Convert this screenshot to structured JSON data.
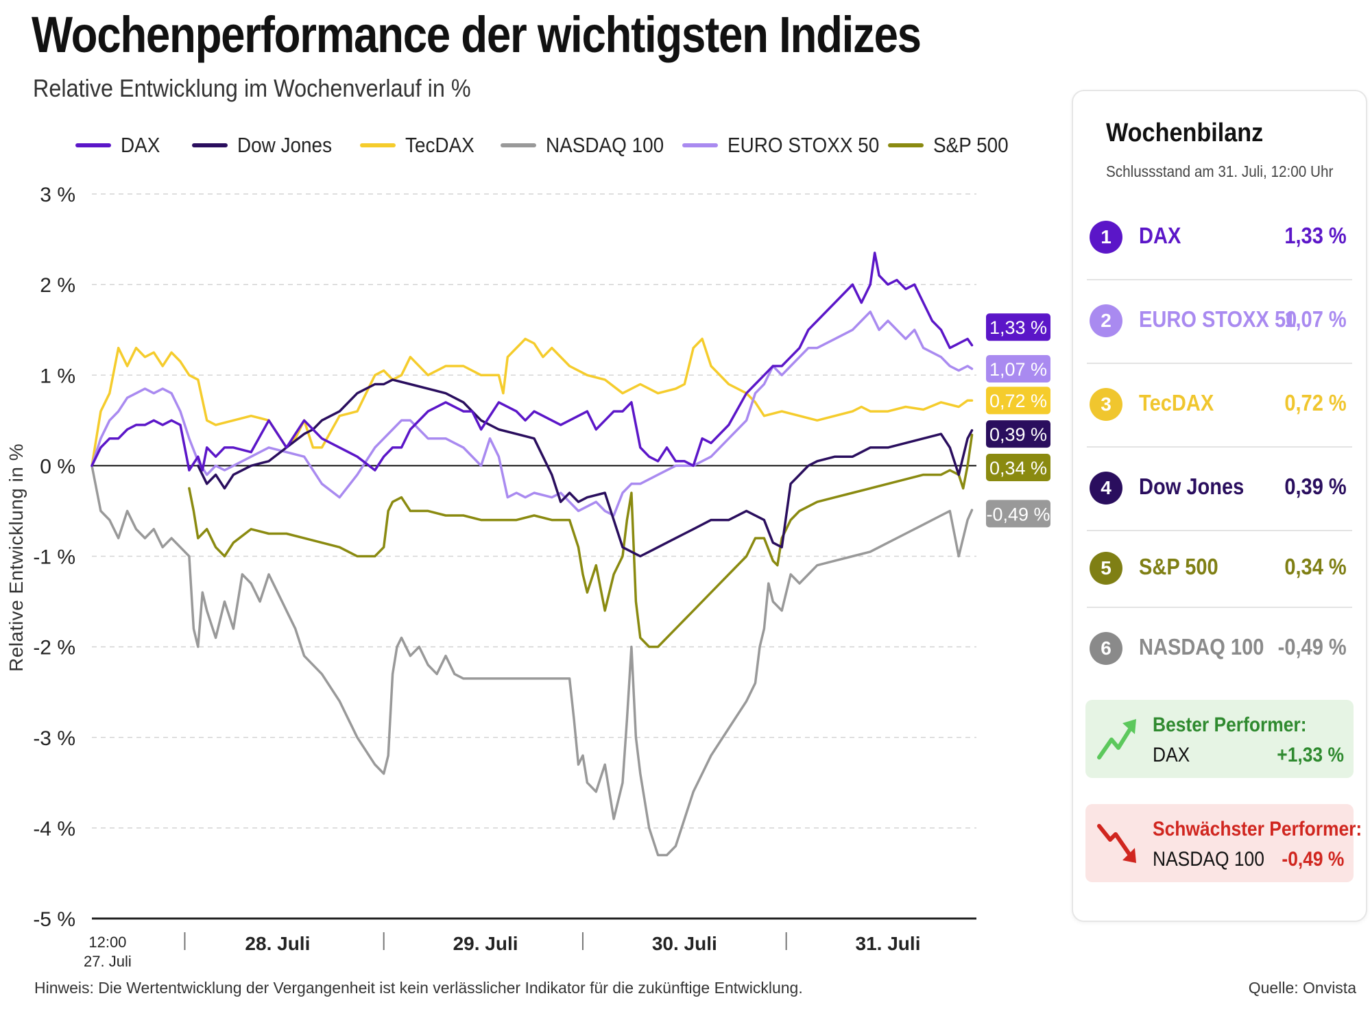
{
  "title": "Wochenperformance der wichtigsten Indizes",
  "subtitle": "Relative Entwicklung im Wochenverlauf in %",
  "footnote": "Hinweis: Die Wertentwicklung der Vergangenheit ist kein verlässlicher Indikator für die zukünftige Entwicklung.",
  "source": "Quelle: Onvista",
  "colors": {
    "DAX": "#5b16c8",
    "Dow Jones": "#2a0e5e",
    "TecDAX": "#f5cc2c",
    "NASDAQ 100": "#999999",
    "EURO STOXX 50": "#a98af0",
    "S&P 500": "#8a8a10"
  },
  "legend": [
    {
      "name": "DAX",
      "color": "#5b16c8"
    },
    {
      "name": "Dow Jones",
      "color": "#2a0e5e"
    },
    {
      "name": "TecDAX",
      "color": "#f5cc2c"
    },
    {
      "name": "NASDAQ 100",
      "color": "#999999"
    },
    {
      "name": "EURO STOXX 50",
      "color": "#a98af0"
    },
    {
      "name": "S&P 500",
      "color": "#8a8a10"
    }
  ],
  "chart_data": {
    "type": "line",
    "title": "Wochenperformance der wichtigsten Indizes",
    "subtitle": "Relative Entwicklung im Wochenverlauf in %",
    "ylabel": "Relative Entwicklung in %",
    "xlabel": "",
    "ylim": [
      -5,
      3
    ],
    "y_ticks": [
      3,
      2,
      1,
      0,
      -1,
      -2,
      -3,
      -4,
      -5
    ],
    "y_tick_labels": [
      "3 %",
      "2 %",
      "1 %",
      "0 %",
      "-1 %",
      "-2 %",
      "-3 %",
      "-4 %",
      "-5 %"
    ],
    "x_range": [
      0,
      100
    ],
    "x_tick_labels": [
      {
        "x": 1,
        "label": "12:00",
        "label2": "27. Juli"
      },
      {
        "x": 21,
        "label": "28. Juli"
      },
      {
        "x": 44.5,
        "label": "29. Juli"
      },
      {
        "x": 67,
        "label": "30. Juli"
      },
      {
        "x": 90,
        "label": "31. Juli"
      }
    ],
    "x_separators": [
      10.5,
      33,
      55.5,
      78.5
    ],
    "grid": "horizontal dashed",
    "legend_position": "top",
    "series": [
      {
        "name": "DAX",
        "end_label": "1,33 %",
        "x": [
          0,
          1,
          2,
          3,
          4,
          5,
          6,
          7,
          8,
          9,
          10,
          11,
          12,
          12.5,
          13,
          14,
          15,
          16,
          18,
          20,
          22,
          24,
          25,
          26,
          28,
          30,
          32,
          33,
          34,
          35,
          36,
          38,
          40,
          42,
          43,
          44,
          46,
          48,
          49,
          50,
          52,
          53,
          54,
          55,
          56,
          57,
          58,
          59,
          60,
          61,
          62,
          63,
          64,
          65,
          66,
          67,
          68,
          69,
          70,
          72,
          74,
          75,
          76,
          77,
          78,
          79,
          80,
          81,
          82,
          84,
          86,
          87,
          88,
          88.5,
          89,
          90,
          91,
          92,
          93,
          94,
          95,
          96,
          97,
          98,
          99,
          99.5
        ],
        "values": [
          0,
          0.2,
          0.3,
          0.3,
          0.4,
          0.45,
          0.45,
          0.5,
          0.45,
          0.5,
          0.45,
          -0.05,
          0.1,
          -0.05,
          0.2,
          0.1,
          0.2,
          0.2,
          0.15,
          0.5,
          0.2,
          0.5,
          0.4,
          0.3,
          0.2,
          0.1,
          -0.05,
          0.1,
          0.2,
          0.2,
          0.4,
          0.6,
          0.7,
          0.6,
          0.6,
          0.4,
          0.7,
          0.6,
          0.5,
          0.6,
          0.5,
          0.45,
          0.5,
          0.55,
          0.6,
          0.4,
          0.5,
          0.6,
          0.6,
          0.7,
          0.2,
          0.1,
          0.05,
          0.2,
          0.05,
          0.05,
          0.0,
          0.3,
          0.25,
          0.45,
          0.8,
          0.9,
          1.0,
          1.1,
          1.1,
          1.2,
          1.3,
          1.5,
          1.6,
          1.8,
          2.0,
          1.8,
          2.0,
          2.35,
          2.1,
          2.0,
          2.05,
          1.95,
          2.0,
          1.8,
          1.6,
          1.5,
          1.3,
          1.35,
          1.4,
          1.33
        ]
      },
      {
        "name": "Dow Jones",
        "end_label": "0,39 %",
        "x": [
          12,
          13,
          14,
          15,
          16,
          18,
          20,
          22,
          24,
          25,
          26,
          28,
          30,
          32,
          33,
          34,
          36,
          38,
          40,
          42,
          44,
          46,
          48,
          50,
          52,
          53,
          54,
          55,
          56,
          58,
          60,
          61,
          62,
          63,
          64,
          65,
          66,
          67,
          68,
          70,
          72,
          74,
          76,
          77,
          78,
          79,
          80,
          81,
          82,
          84,
          86,
          88,
          90,
          92,
          94,
          96,
          97,
          98,
          99,
          99.5
        ],
        "values": [
          0.0,
          -0.2,
          -0.1,
          -0.25,
          -0.1,
          0.0,
          0.05,
          0.2,
          0.35,
          0.4,
          0.5,
          0.6,
          0.8,
          0.9,
          0.9,
          0.95,
          0.9,
          0.85,
          0.8,
          0.7,
          0.5,
          0.4,
          0.35,
          0.3,
          -0.1,
          -0.4,
          -0.3,
          -0.4,
          -0.35,
          -0.3,
          -0.9,
          -0.95,
          -1.0,
          -0.95,
          -0.9,
          -0.85,
          -0.8,
          -0.75,
          -0.7,
          -0.6,
          -0.6,
          -0.5,
          -0.6,
          -0.85,
          -0.9,
          -0.2,
          -0.1,
          0.0,
          0.05,
          0.1,
          0.1,
          0.2,
          0.2,
          0.25,
          0.3,
          0.35,
          0.2,
          -0.1,
          0.3,
          0.39
        ]
      },
      {
        "name": "TecDAX",
        "end_label": "0,72 %",
        "x": [
          0,
          1,
          2,
          3,
          4,
          5,
          6,
          7,
          8,
          9,
          10,
          11,
          12,
          13,
          14,
          16,
          18,
          20,
          22,
          23,
          24,
          25,
          26,
          28,
          30,
          32,
          33,
          34,
          35,
          36,
          38,
          40,
          42,
          44,
          46,
          46.5,
          47,
          48,
          49,
          50,
          51,
          52,
          54,
          56,
          58,
          60,
          62,
          64,
          66,
          67,
          68,
          69,
          70,
          72,
          74,
          75,
          76,
          78,
          80,
          82,
          84,
          86,
          87,
          88,
          90,
          92,
          94,
          96,
          98,
          99,
          99.5
        ],
        "values": [
          0,
          0.6,
          0.8,
          1.3,
          1.1,
          1.3,
          1.2,
          1.25,
          1.1,
          1.25,
          1.15,
          1.0,
          0.95,
          0.5,
          0.45,
          0.5,
          0.55,
          0.5,
          0.2,
          0.3,
          0.5,
          0.2,
          0.2,
          0.55,
          0.6,
          1.0,
          1.05,
          0.95,
          1.0,
          1.2,
          1.0,
          1.1,
          1.1,
          1.0,
          1.0,
          0.8,
          1.2,
          1.3,
          1.4,
          1.35,
          1.2,
          1.3,
          1.1,
          1.0,
          0.95,
          0.8,
          0.9,
          0.8,
          0.85,
          0.9,
          1.3,
          1.4,
          1.1,
          0.9,
          0.8,
          0.7,
          0.55,
          0.6,
          0.55,
          0.5,
          0.55,
          0.6,
          0.65,
          0.6,
          0.6,
          0.65,
          0.62,
          0.7,
          0.65,
          0.72,
          0.72
        ]
      },
      {
        "name": "NASDAQ 100",
        "end_label": "-0,49 %",
        "x": [
          0,
          1,
          2,
          3,
          4,
          5,
          6,
          7,
          8,
          9,
          10,
          11,
          11.5,
          12,
          12.5,
          13,
          14,
          15,
          16,
          17,
          18,
          19,
          20,
          21,
          22,
          23,
          24,
          26,
          28,
          30,
          32,
          33,
          33.5,
          34,
          34.5,
          35,
          36,
          37,
          38,
          39,
          40,
          41,
          42,
          44,
          46,
          48,
          50,
          52,
          54,
          54.5,
          55,
          55.5,
          56,
          57,
          58,
          59,
          60,
          60.5,
          61,
          61.5,
          62,
          63,
          64,
          65,
          66,
          67,
          68,
          70,
          72,
          74,
          75,
          75.5,
          76,
          76.5,
          77,
          78,
          79,
          80,
          81,
          82,
          84,
          86,
          88,
          90,
          92,
          94,
          96,
          97,
          97.5,
          98,
          99,
          99.5
        ],
        "values": [
          0,
          -0.5,
          -0.6,
          -0.8,
          -0.5,
          -0.7,
          -0.8,
          -0.7,
          -0.9,
          -0.8,
          -0.9,
          -1.0,
          -1.8,
          -2.0,
          -1.4,
          -1.6,
          -1.9,
          -1.5,
          -1.8,
          -1.2,
          -1.3,
          -1.5,
          -1.2,
          -1.4,
          -1.6,
          -1.8,
          -2.1,
          -2.3,
          -2.6,
          -3.0,
          -3.3,
          -3.4,
          -3.2,
          -2.3,
          -2.0,
          -1.9,
          -2.1,
          -2.0,
          -2.2,
          -2.3,
          -2.1,
          -2.3,
          -2.35,
          -2.35,
          -2.35,
          -2.35,
          -2.35,
          -2.35,
          -2.35,
          -2.8,
          -3.3,
          -3.2,
          -3.5,
          -3.6,
          -3.3,
          -3.9,
          -3.5,
          -2.8,
          -2.0,
          -3.0,
          -3.4,
          -4.0,
          -4.3,
          -4.3,
          -4.2,
          -3.9,
          -3.6,
          -3.2,
          -2.9,
          -2.6,
          -2.4,
          -2.0,
          -1.8,
          -1.3,
          -1.5,
          -1.6,
          -1.2,
          -1.3,
          -1.2,
          -1.1,
          -1.05,
          -1.0,
          -0.95,
          -0.85,
          -0.75,
          -0.65,
          -0.55,
          -0.5,
          -0.75,
          -1.0,
          -0.6,
          -0.49
        ]
      },
      {
        "name": "EURO STOXX 50",
        "end_label": "1,07 %",
        "x": [
          0,
          1,
          2,
          3,
          4,
          5,
          6,
          7,
          8,
          9,
          10,
          11,
          12,
          13,
          14,
          15,
          16,
          18,
          20,
          22,
          24,
          26,
          28,
          30,
          32,
          33,
          34,
          35,
          36,
          38,
          40,
          42,
          44,
          45,
          46,
          47,
          48,
          49,
          50,
          52,
          53,
          54,
          55,
          56,
          57,
          58,
          59,
          60,
          61,
          62,
          63,
          64,
          66,
          68,
          70,
          72,
          74,
          75,
          76,
          77,
          78,
          79,
          80,
          81,
          82,
          84,
          86,
          87,
          88,
          89,
          90,
          91,
          92,
          93,
          94,
          96,
          97,
          98,
          99,
          99.5
        ],
        "values": [
          0,
          0.3,
          0.5,
          0.6,
          0.75,
          0.8,
          0.85,
          0.8,
          0.85,
          0.8,
          0.6,
          0.3,
          0.05,
          -0.1,
          0.0,
          -0.05,
          0.0,
          0.1,
          0.2,
          0.15,
          0.1,
          -0.2,
          -0.35,
          -0.1,
          0.2,
          0.3,
          0.4,
          0.5,
          0.5,
          0.3,
          0.3,
          0.2,
          0.0,
          0.3,
          0.1,
          -0.35,
          -0.3,
          -0.35,
          -0.3,
          -0.35,
          -0.3,
          -0.4,
          -0.5,
          -0.45,
          -0.4,
          -0.5,
          -0.55,
          -0.3,
          -0.2,
          -0.2,
          -0.15,
          -0.1,
          0.0,
          0.0,
          0.1,
          0.3,
          0.5,
          0.8,
          0.9,
          1.1,
          1.0,
          1.1,
          1.2,
          1.3,
          1.3,
          1.4,
          1.5,
          1.6,
          1.7,
          1.5,
          1.6,
          1.5,
          1.4,
          1.5,
          1.3,
          1.2,
          1.1,
          1.05,
          1.1,
          1.07
        ]
      },
      {
        "name": "S&P 500",
        "end_label": "0,34 %",
        "x": [
          11,
          11.5,
          12,
          13,
          14,
          15,
          16,
          18,
          20,
          22,
          24,
          26,
          28,
          30,
          32,
          33,
          33.5,
          34,
          35,
          36,
          38,
          40,
          42,
          44,
          46,
          48,
          50,
          52,
          54,
          55,
          55.5,
          56,
          57,
          58,
          59,
          60,
          60.5,
          61,
          61.5,
          62,
          63,
          64,
          65,
          66,
          67,
          68,
          70,
          72,
          74,
          75,
          76,
          77,
          77.5,
          78,
          79,
          80,
          82,
          84,
          86,
          88,
          90,
          92,
          94,
          96,
          97,
          98,
          98.5,
          99,
          99.5
        ],
        "values": [
          -0.25,
          -0.5,
          -0.8,
          -0.7,
          -0.9,
          -1.0,
          -0.85,
          -0.7,
          -0.75,
          -0.75,
          -0.8,
          -0.85,
          -0.9,
          -1.0,
          -1.0,
          -0.9,
          -0.5,
          -0.4,
          -0.35,
          -0.5,
          -0.5,
          -0.55,
          -0.55,
          -0.6,
          -0.6,
          -0.6,
          -0.55,
          -0.6,
          -0.6,
          -0.9,
          -1.2,
          -1.4,
          -1.1,
          -1.6,
          -1.2,
          -1.0,
          -0.6,
          -0.3,
          -1.5,
          -1.9,
          -2.0,
          -2.0,
          -1.9,
          -1.8,
          -1.7,
          -1.6,
          -1.4,
          -1.2,
          -1.0,
          -0.8,
          -0.8,
          -1.05,
          -1.1,
          -0.8,
          -0.6,
          -0.5,
          -0.4,
          -0.35,
          -0.3,
          -0.25,
          -0.2,
          -0.15,
          -0.1,
          -0.1,
          -0.05,
          -0.1,
          -0.25,
          0.0,
          0.34
        ]
      }
    ]
  },
  "panel": {
    "title": "Wochenbilanz",
    "subtitle": "Schlussstand am 31. Juli, 12:00 Uhr",
    "ranking": [
      {
        "rank": "1",
        "name": "DAX",
        "value": "1,33 %",
        "color": "#5b16c8"
      },
      {
        "rank": "2",
        "name": "EURO STOXX 50",
        "value": "1,07 %",
        "color": "#a98af0"
      },
      {
        "rank": "3",
        "name": "TecDAX",
        "value": "0,72 %",
        "color": "#f0c62e"
      },
      {
        "rank": "4",
        "name": "Dow Jones",
        "value": "0,39 %",
        "color": "#2a0e5e"
      },
      {
        "rank": "5",
        "name": "S&P 500",
        "value": "0,34 %",
        "color": "#7f7f14"
      },
      {
        "rank": "6",
        "name": "NASDAQ 100",
        "value": "-0,49 %",
        "color": "#8a8a8a"
      }
    ],
    "best": {
      "heading": "Bester Performer:",
      "name": "DAX",
      "value": "+1,33 %",
      "color": "#2f8a2f",
      "bg": "#e6f4e4",
      "icon": "trend-up-arrow-icon"
    },
    "worst": {
      "heading": "Schwächster Performer:",
      "name": "NASDAQ 100",
      "value": "-0,49 %",
      "color": "#d0261f",
      "bg": "#fbe5e4",
      "icon": "trend-down-arrow-icon"
    }
  }
}
